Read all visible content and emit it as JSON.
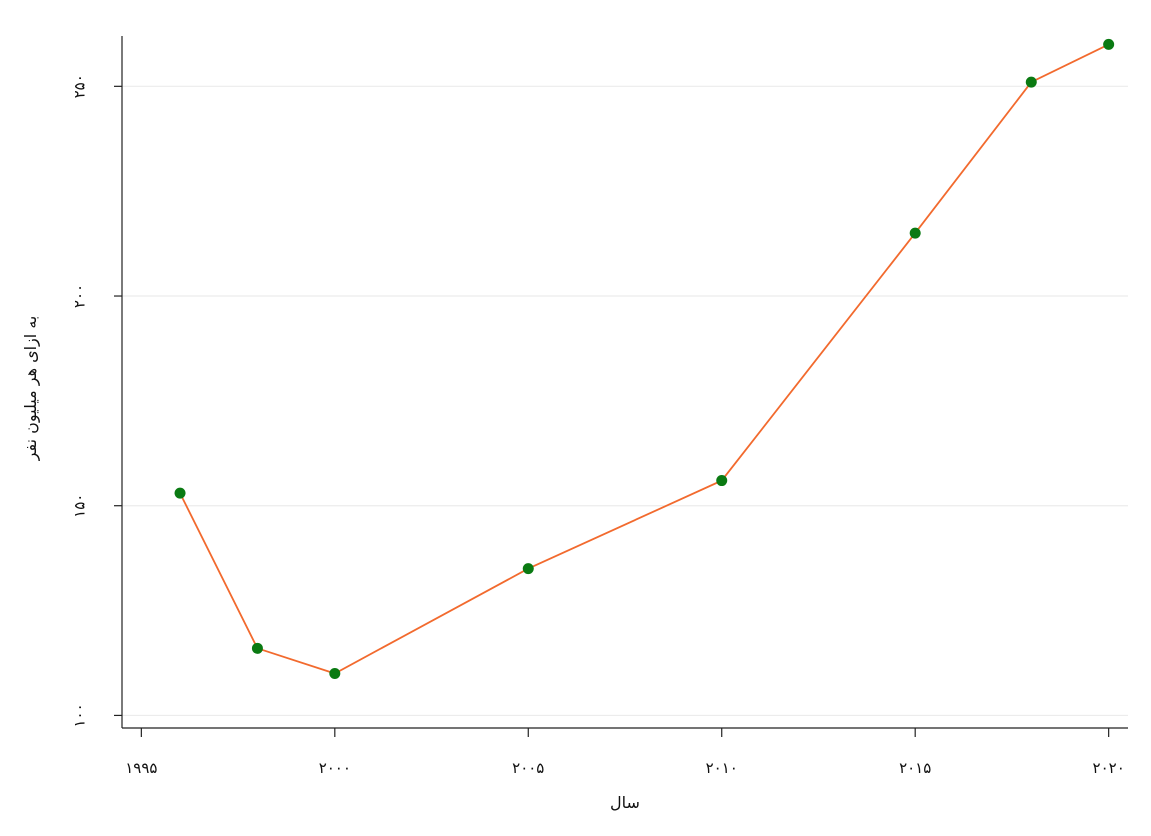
{
  "chart_data": {
    "type": "line",
    "title": "",
    "xlabel": "سال",
    "ylabel": "به ازای هر میلیون نفر",
    "xlim": [
      1994.5,
      2020.5
    ],
    "ylim": [
      97,
      262
    ],
    "x_ticks": [
      1995,
      2000,
      2005,
      2010,
      2015,
      2020
    ],
    "x_tick_labels": [
      "۱۹۹۵",
      "۲۰۰۰",
      "۲۰۰۵",
      "۲۰۱۰",
      "۲۰۱۵",
      "۲۰۲۰"
    ],
    "y_ticks": [
      100,
      150,
      200,
      250
    ],
    "y_tick_labels": [
      "۱۰۰",
      "۱۵۰",
      "۲۰۰",
      "۲۵۰"
    ],
    "grid": "horizontal",
    "series": [
      {
        "x": [
          1996,
          1998,
          2000,
          2005,
          2010,
          2015,
          2018,
          2020
        ],
        "y": [
          153,
          116,
          110,
          135,
          156,
          215,
          251,
          260
        ],
        "line_color": "#f26a2e",
        "marker_color": "#0a7a12"
      }
    ]
  }
}
